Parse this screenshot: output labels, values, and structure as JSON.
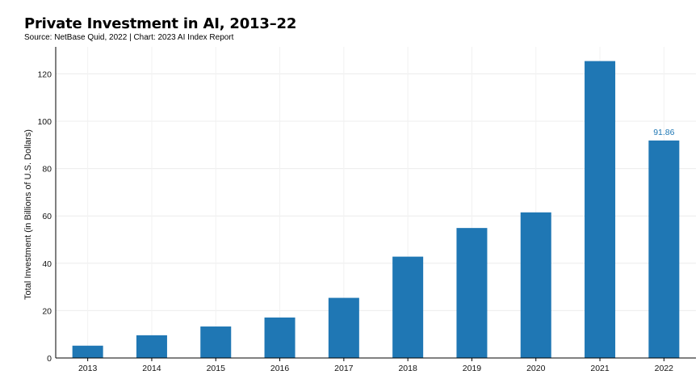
{
  "chart_data": {
    "type": "bar",
    "title": "Private Investment in AI, 2013–22",
    "subtitle": "Source: NetBase Quid, 2022 | Chart: 2023 AI Index Report",
    "ylabel": "Total Investment (in Billions of U.S. Dollars)",
    "xlabel": "",
    "categories": [
      "2013",
      "2014",
      "2015",
      "2016",
      "2017",
      "2018",
      "2019",
      "2020",
      "2021",
      "2022"
    ],
    "values": [
      5.2,
      9.6,
      13.3,
      17.1,
      25.4,
      42.8,
      54.9,
      61.5,
      125.4,
      91.86
    ],
    "data_labels": [
      {
        "category": "2022",
        "text": "91.86"
      }
    ],
    "ylim": [
      0,
      132
    ],
    "yticks": [
      0,
      20,
      40,
      60,
      80,
      100,
      120
    ],
    "grid": true,
    "bar_color": "#1f77b4"
  }
}
